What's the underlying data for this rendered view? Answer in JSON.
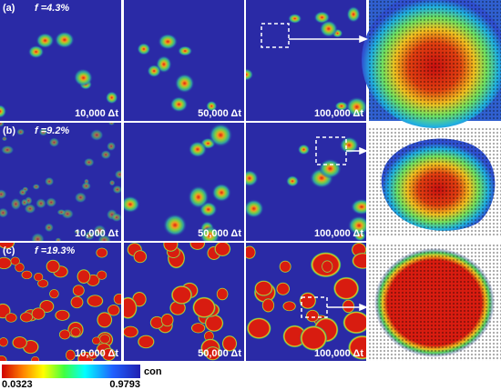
{
  "rows": [
    {
      "label": "(a)",
      "fraction": "f =4.3%",
      "panels": [
        {
          "time": "10,000 Δt"
        },
        {
          "time": "50,000 Δt"
        },
        {
          "time": "100,000 Δt"
        }
      ]
    },
    {
      "label": "(b)",
      "fraction": "f =9.2%",
      "panels": [
        {
          "time": "10,000 Δt"
        },
        {
          "time": "50,000 Δt"
        },
        {
          "time": "100,000 Δt"
        }
      ]
    },
    {
      "label": "(c)",
      "fraction": "f =19.3%",
      "panels": [
        {
          "time": "10,000 Δt"
        },
        {
          "time": "50,000 Δt"
        },
        {
          "time": "100,000 Δt"
        }
      ]
    }
  ],
  "colorbar": {
    "title": "con",
    "min_label": "0.0323",
    "max_label": "0.9793"
  }
}
